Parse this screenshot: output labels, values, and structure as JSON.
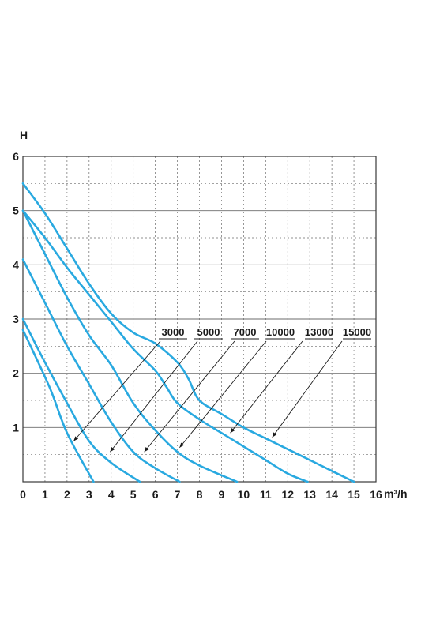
{
  "chart_data": {
    "type": "line",
    "title": "",
    "xlabel": "m³/h",
    "ylabel": "H",
    "xlim": [
      0,
      16
    ],
    "ylim": [
      0,
      6
    ],
    "x_ticks": [
      0,
      1,
      2,
      3,
      4,
      5,
      6,
      7,
      8,
      9,
      10,
      11,
      12,
      13,
      14,
      15,
      16
    ],
    "y_ticks": [
      1,
      2,
      3,
      4,
      5,
      6
    ],
    "grid": true,
    "line_color": "#29a9e0",
    "series": [
      {
        "name": "3000",
        "points": [
          [
            0,
            2.8
          ],
          [
            1.2,
            1.75
          ],
          [
            2,
            0.9
          ],
          [
            3.2,
            0
          ]
        ]
      },
      {
        "name": "5000",
        "points": [
          [
            0,
            3.0
          ],
          [
            1,
            2.2
          ],
          [
            2,
            1.45
          ],
          [
            3,
            0.75
          ],
          [
            4,
            0.35
          ],
          [
            5.3,
            0
          ]
        ]
      },
      {
        "name": "7000",
        "points": [
          [
            0,
            4.1
          ],
          [
            1,
            3.3
          ],
          [
            2,
            2.5
          ],
          [
            3,
            1.8
          ],
          [
            4,
            1.1
          ],
          [
            5,
            0.55
          ],
          [
            6,
            0.25
          ],
          [
            7.1,
            0
          ]
        ]
      },
      {
        "name": "10000",
        "points": [
          [
            0,
            5.0
          ],
          [
            1,
            4.2
          ],
          [
            2,
            3.4
          ],
          [
            3,
            2.7
          ],
          [
            4,
            2.15
          ],
          [
            5,
            1.45
          ],
          [
            6,
            0.95
          ],
          [
            7,
            0.55
          ],
          [
            8,
            0.3
          ],
          [
            9.7,
            0
          ]
        ]
      },
      {
        "name": "13000",
        "points": [
          [
            0,
            5.0
          ],
          [
            1,
            4.5
          ],
          [
            2,
            3.95
          ],
          [
            3,
            3.45
          ],
          [
            4,
            2.95
          ],
          [
            5,
            2.45
          ],
          [
            6,
            2.05
          ],
          [
            6.5,
            1.75
          ],
          [
            7,
            1.45
          ],
          [
            8,
            1.15
          ],
          [
            9,
            0.9
          ],
          [
            10,
            0.65
          ],
          [
            11,
            0.4
          ],
          [
            12,
            0.15
          ],
          [
            12.9,
            0
          ]
        ]
      },
      {
        "name": "15000",
        "points": [
          [
            0,
            5.5
          ],
          [
            1,
            4.95
          ],
          [
            2,
            4.3
          ],
          [
            3,
            3.65
          ],
          [
            4,
            3.1
          ],
          [
            5,
            2.75
          ],
          [
            6,
            2.55
          ],
          [
            7,
            2.2
          ],
          [
            7.5,
            1.9
          ],
          [
            8,
            1.5
          ],
          [
            9,
            1.25
          ],
          [
            10,
            1.0
          ],
          [
            11,
            0.8
          ],
          [
            12,
            0.6
          ],
          [
            13,
            0.4
          ],
          [
            14,
            0.2
          ],
          [
            15,
            0
          ]
        ]
      }
    ],
    "callouts": [
      {
        "series": "3000",
        "label": "3000",
        "point": [
          2.3,
          0.75
        ]
      },
      {
        "series": "5000",
        "label": "5000",
        "point": [
          3.95,
          0.55
        ]
      },
      {
        "series": "7000",
        "label": "7000",
        "point": [
          5.5,
          0.55
        ]
      },
      {
        "series": "10000",
        "label": "10000",
        "point": [
          7.1,
          0.63
        ]
      },
      {
        "series": "13000",
        "label": "13000",
        "point": [
          9.4,
          0.9
        ]
      },
      {
        "series": "15000",
        "label": "15000",
        "point": [
          11.3,
          0.82
        ]
      }
    ]
  }
}
